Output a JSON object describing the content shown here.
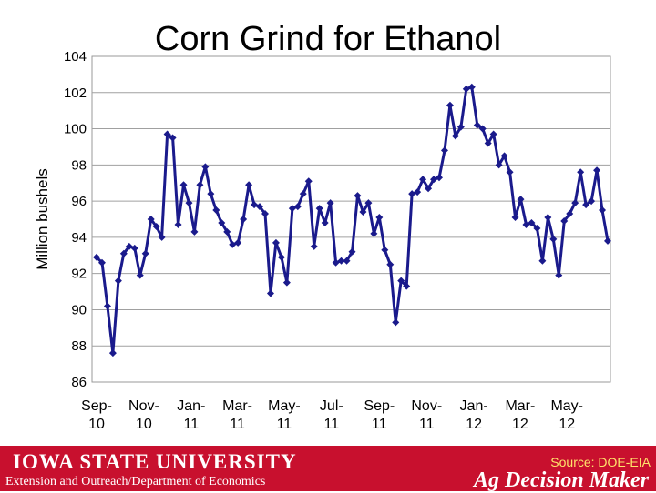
{
  "chart_data": {
    "type": "line",
    "title": "Corn Grind for Ethanol",
    "ylabel": "Million bushels",
    "xlabel": "",
    "ylim": [
      86,
      104
    ],
    "yticks": [
      86,
      88,
      90,
      92,
      94,
      96,
      98,
      100,
      102,
      104
    ],
    "grid": true,
    "legend": "none",
    "series_color": "#1a1a8c",
    "x_tick_labels": [
      {
        "line1": "Sep-",
        "line2": "10",
        "week": 0
      },
      {
        "line1": "Nov-",
        "line2": "10",
        "week": 8.7
      },
      {
        "line1": "Jan-",
        "line2": "11",
        "week": 17.4
      },
      {
        "line1": "Mar-",
        "line2": "11",
        "week": 25.9
      },
      {
        "line1": "May-",
        "line2": "11",
        "week": 34.5
      },
      {
        "line1": "Jul-",
        "line2": "11",
        "week": 43.2
      },
      {
        "line1": "Sep-",
        "line2": "11",
        "week": 52.0
      },
      {
        "line1": "Nov-",
        "line2": "11",
        "week": 60.7
      },
      {
        "line1": "Jan-",
        "line2": "12",
        "week": 69.4
      },
      {
        "line1": "Mar-",
        "line2": "12",
        "week": 77.9
      },
      {
        "line1": "May-",
        "line2": "12",
        "week": 86.5
      }
    ],
    "series": [
      {
        "values": [
          92.9,
          92.6,
          90.2,
          87.6,
          91.6,
          93.1,
          93.5,
          93.4,
          91.9,
          93.1,
          95.0,
          94.6,
          94.0,
          99.7,
          99.5,
          94.7,
          96.9,
          95.9,
          94.3,
          96.9,
          97.9,
          96.4,
          95.5,
          94.8,
          94.3,
          93.6,
          93.7,
          95.0,
          96.9,
          95.8,
          95.7,
          95.3,
          90.9,
          93.7,
          92.9,
          91.5,
          95.6,
          95.7,
          96.4,
          97.1,
          93.5,
          95.6,
          94.8,
          95.9,
          92.6,
          92.7,
          92.7,
          93.2,
          96.3,
          95.4,
          95.9,
          94.2,
          95.1,
          93.3,
          92.5,
          89.3,
          91.6,
          91.3,
          96.4,
          96.5,
          97.2,
          96.7,
          97.2,
          97.3,
          98.8,
          101.3,
          99.6,
          100.1,
          102.2,
          102.3,
          100.2,
          100.0,
          99.2,
          99.7,
          98.0,
          98.5,
          97.6,
          95.1,
          96.1,
          94.7,
          94.8,
          94.5,
          92.7,
          95.1,
          93.9,
          91.9,
          94.9,
          95.3,
          95.9,
          97.6,
          95.8,
          96.0,
          97.7,
          95.5,
          93.8
        ]
      }
    ]
  },
  "footer": {
    "university": "IOWA STATE UNIVERSITY",
    "department": "Extension and Outreach/Department of Economics",
    "source": "Source: DOE-EIA",
    "brand": "Ag Decision Maker"
  }
}
